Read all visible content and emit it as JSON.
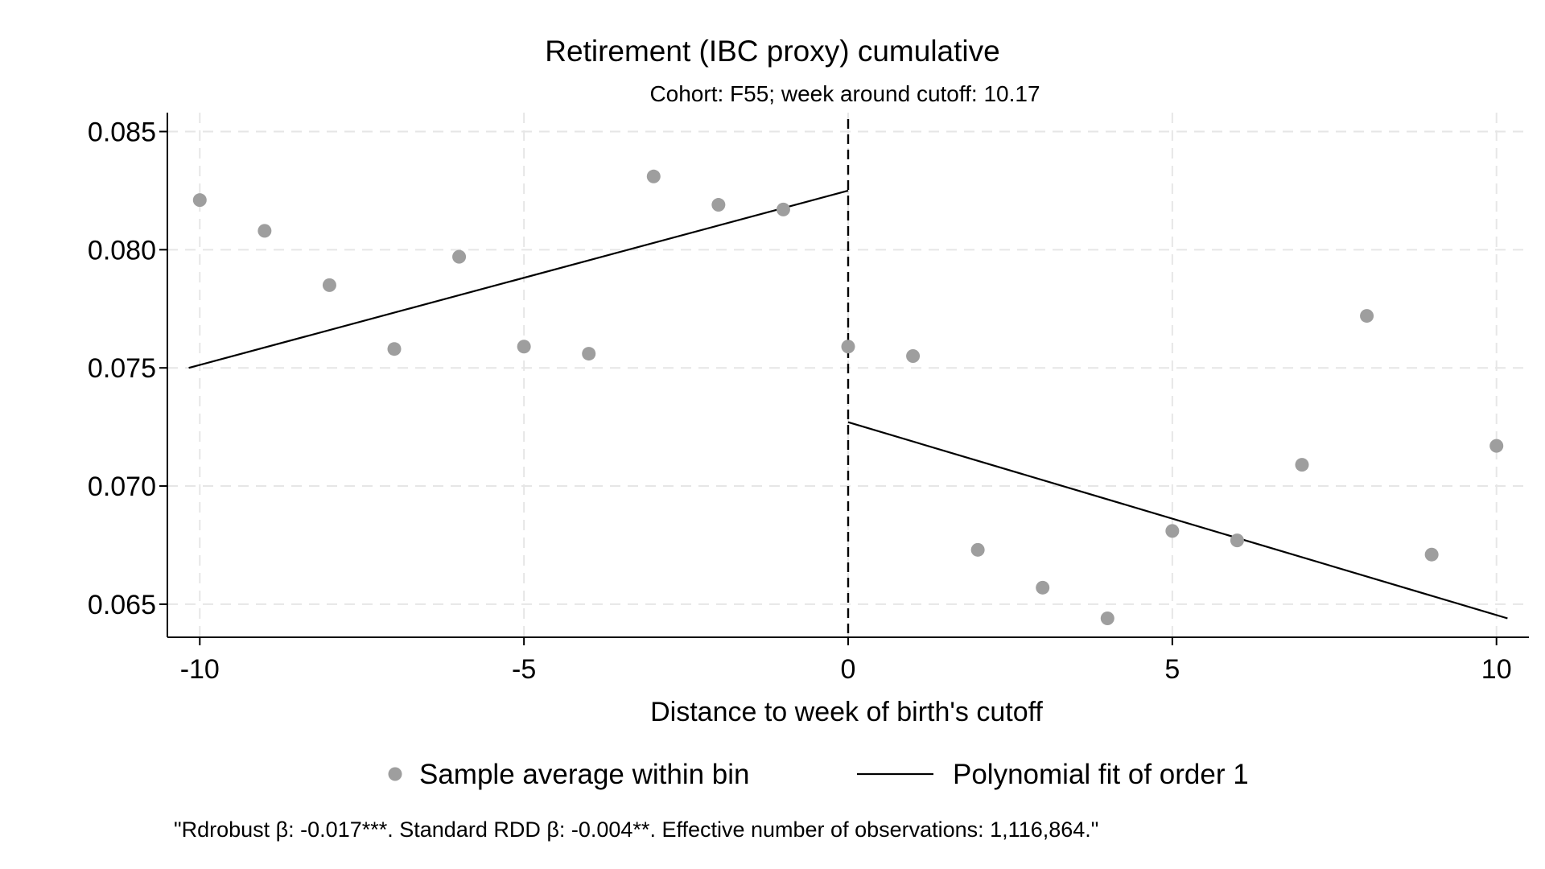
{
  "chart_data": {
    "type": "scatter",
    "title": "Retirement (IBC proxy) cumulative",
    "subtitle": "Cohort: F55; week around cutoff: 10.17",
    "xlabel": "Distance to week of birth's cutoff",
    "ylabel": "",
    "xlim": [
      -10.5,
      10.5
    ],
    "ylim": [
      0.0636,
      0.0858
    ],
    "x_ticks": [
      -10,
      -5,
      0,
      5,
      10
    ],
    "x_tick_labels": [
      "-10",
      "-5",
      "0",
      "5",
      "10"
    ],
    "y_ticks": [
      0.065,
      0.07,
      0.075,
      0.08,
      0.085
    ],
    "y_tick_labels": [
      "0.065",
      "0.070",
      "0.075",
      "0.080",
      "0.085"
    ],
    "grid": true,
    "cutoff_x": 0,
    "series": [
      {
        "name": "Sample average within bin",
        "kind": "scatter",
        "color": "#9e9e9e",
        "points": [
          {
            "x": -10,
            "y": 0.0821
          },
          {
            "x": -9,
            "y": 0.0808
          },
          {
            "x": -8,
            "y": 0.0785
          },
          {
            "x": -7,
            "y": 0.0758
          },
          {
            "x": -6,
            "y": 0.0797
          },
          {
            "x": -5,
            "y": 0.0759
          },
          {
            "x": -4,
            "y": 0.0756
          },
          {
            "x": -3,
            "y": 0.0831
          },
          {
            "x": -2,
            "y": 0.0819
          },
          {
            "x": -1,
            "y": 0.0817
          },
          {
            "x": 0,
            "y": 0.0759
          },
          {
            "x": 1,
            "y": 0.0755
          },
          {
            "x": 2,
            "y": 0.0673
          },
          {
            "x": 3,
            "y": 0.0657
          },
          {
            "x": 4,
            "y": 0.0644
          },
          {
            "x": 5,
            "y": 0.0681
          },
          {
            "x": 6,
            "y": 0.0677
          },
          {
            "x": 7,
            "y": 0.0709
          },
          {
            "x": 8,
            "y": 0.0772
          },
          {
            "x": 9,
            "y": 0.0671
          },
          {
            "x": 10,
            "y": 0.0717
          }
        ]
      },
      {
        "name": "Polynomial fit of order 1",
        "kind": "line",
        "color": "#000000",
        "segments": [
          [
            {
              "x": -10.17,
              "y": 0.075
            },
            {
              "x": 0,
              "y": 0.0825
            }
          ],
          [
            {
              "x": 0,
              "y": 0.0727
            },
            {
              "x": 10.17,
              "y": 0.0644
            }
          ]
        ]
      }
    ],
    "legend": {
      "position": "bottom",
      "entries": [
        "Sample average within bin",
        "Polynomial fit of order 1"
      ]
    },
    "note": "\"Rdrobust β: -0.017***. Standard RDD β: -0.004**. Effective number of observations: 1,116,864.\""
  }
}
